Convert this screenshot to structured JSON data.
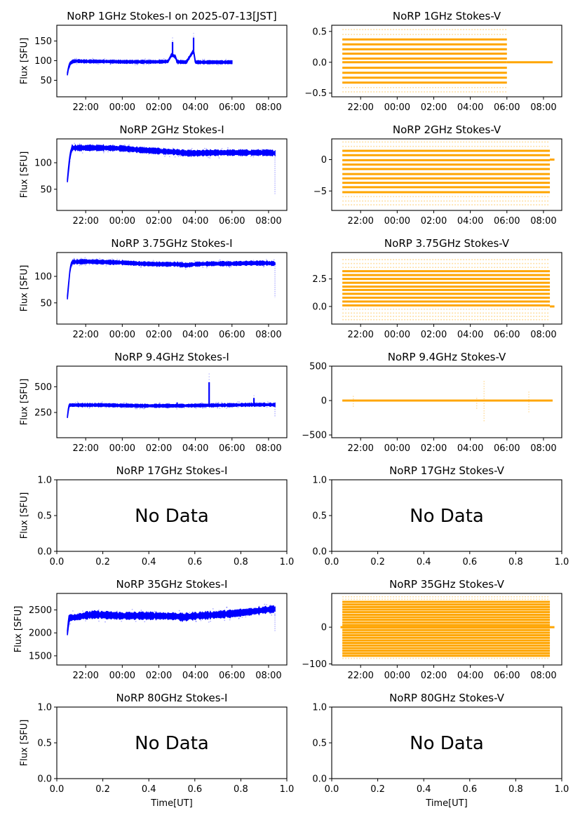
{
  "figure": {
    "xlabel": "Time[UT]",
    "ylabel": "Flux [SFU]",
    "no_data_text": "No Data"
  },
  "chart_data": [
    {
      "id": "1ghz-i",
      "type": "scatter",
      "title": "NoRP 1GHz Stokes-I on 2025-07-13[JST]",
      "column": 0,
      "row": 0,
      "has_data": true,
      "color": "#0000ff",
      "style": "band",
      "xlabel": "",
      "ylabel": "Flux [SFU]",
      "xlim_hours": [
        20.42,
        33.0
      ],
      "ylim": [
        8,
        190
      ],
      "xticks": [
        "22:00",
        "00:00",
        "02:00",
        "04:00",
        "06:00",
        "08:00"
      ],
      "xtick_hours": [
        22,
        24,
        26,
        28,
        30,
        32
      ],
      "yticks": [
        50,
        100,
        150
      ],
      "ytick_labels": [
        "50",
        "100",
        "150"
      ],
      "series": [
        {
          "name": "Stokes-I",
          "x_hours": [
            21.0,
            21.05,
            21.15,
            21.3,
            21.5,
            22.0,
            23.0,
            24.0,
            25.0,
            26.0,
            26.5,
            26.7,
            26.9,
            27.0,
            27.5,
            27.9,
            28.0,
            29.0,
            30.0
          ],
          "values": [
            66,
            80,
            93,
            98,
            99,
            98,
            98,
            97,
            97,
            97,
            98,
            115,
            110,
            97,
            96,
            125,
            96,
            96,
            96
          ],
          "spread": 3
        }
      ],
      "spikes": [
        {
          "x_hours": 26.75,
          "max": 162
        },
        {
          "x_hours": 27.9,
          "max": 173
        }
      ]
    },
    {
      "id": "1ghz-v",
      "type": "scatter",
      "title": "NoRP 1GHz Stokes-V",
      "column": 1,
      "row": 0,
      "has_data": true,
      "color": "#ffa500",
      "style": "levels",
      "xlabel": "",
      "ylabel": "",
      "xlim_hours": [
        20.42,
        33.0
      ],
      "ylim": [
        -0.56,
        0.6
      ],
      "xticks": [
        "22:00",
        "00:00",
        "02:00",
        "04:00",
        "06:00",
        "08:00"
      ],
      "xtick_hours": [
        22,
        24,
        26,
        28,
        30,
        32
      ],
      "yticks": [
        -0.5,
        0.0,
        0.5
      ],
      "ytick_labels": [
        "−0.5",
        "0.0",
        "0.5"
      ],
      "series": [
        {
          "name": "Stokes-V",
          "x_range_hours": [
            21.0,
            30.0
          ],
          "levels": [
            -0.48,
            -0.41,
            -0.33,
            -0.25,
            -0.17,
            -0.09,
            0.0,
            0.06,
            0.14,
            0.21,
            0.29,
            0.37,
            0.45,
            0.53
          ],
          "faint_levels": [
            -0.48,
            -0.41,
            0.45,
            0.53
          ],
          "tail": {
            "x_range_hours": [
              30.0,
              32.5
            ],
            "value": 0.0
          }
        }
      ]
    },
    {
      "id": "2ghz-i",
      "type": "scatter",
      "title": "NoRP 2GHz Stokes-I",
      "column": 0,
      "row": 1,
      "has_data": true,
      "color": "#0000ff",
      "style": "band",
      "xlabel": "",
      "ylabel": "Flux [SFU]",
      "xlim_hours": [
        20.42,
        33.0
      ],
      "ylim": [
        10,
        145
      ],
      "xticks": [
        "22:00",
        "00:00",
        "02:00",
        "04:00",
        "06:00",
        "08:00"
      ],
      "xtick_hours": [
        22,
        24,
        26,
        28,
        30,
        32
      ],
      "yticks": [
        50,
        100
      ],
      "ytick_labels": [
        "50",
        "100"
      ],
      "series": [
        {
          "name": "Stokes-I",
          "x_hours": [
            21.0,
            21.05,
            21.15,
            21.25,
            22.0,
            23.0,
            24.0,
            25.0,
            26.0,
            27.0,
            27.5,
            28.0,
            29.0,
            30.0,
            31.0,
            32.0,
            32.35
          ],
          "values": [
            66,
            85,
            115,
            128,
            128,
            128,
            127,
            124,
            122,
            120,
            118,
            118,
            119,
            119,
            119,
            119,
            118
          ],
          "spread": 4
        }
      ],
      "drop": {
        "x_hours": 32.35,
        "min": 41
      }
    },
    {
      "id": "2ghz-v",
      "type": "scatter",
      "title": "NoRP 2GHz Stokes-V",
      "column": 1,
      "row": 1,
      "has_data": true,
      "color": "#ffa500",
      "style": "levels",
      "xlabel": "",
      "ylabel": "",
      "xlim_hours": [
        20.42,
        33.0
      ],
      "ylim": [
        -8.1,
        3.3
      ],
      "xticks": [
        "22:00",
        "00:00",
        "02:00",
        "04:00",
        "06:00",
        "08:00"
      ],
      "xtick_hours": [
        22,
        24,
        26,
        28,
        30,
        32
      ],
      "yticks": [
        -5,
        0
      ],
      "ytick_labels": [
        "−5",
        "0"
      ],
      "series": [
        {
          "name": "Stokes-V",
          "x_range_hours": [
            21.0,
            32.35
          ],
          "levels": [
            -7.2,
            -6.6,
            -5.9,
            -5.2,
            -4.4,
            -3.7,
            -3.0,
            -2.3,
            -1.5,
            -0.8,
            -0.1,
            0.7,
            1.4,
            2.1,
            2.8
          ],
          "faint_levels": [
            -7.2,
            -6.6,
            -5.9,
            2.1,
            2.8
          ],
          "tail": {
            "x_range_hours": [
              32.35,
              32.6
            ],
            "value": 0.0
          }
        }
      ]
    },
    {
      "id": "3.75ghz-i",
      "type": "scatter",
      "title": "NoRP 3.75GHz Stokes-I",
      "column": 0,
      "row": 2,
      "has_data": true,
      "color": "#0000ff",
      "style": "band",
      "xlabel": "",
      "ylabel": "Flux [SFU]",
      "xlim_hours": [
        20.42,
        33.0
      ],
      "ylim": [
        10,
        145
      ],
      "xticks": [
        "22:00",
        "00:00",
        "02:00",
        "04:00",
        "06:00",
        "08:00"
      ],
      "xtick_hours": [
        22,
        24,
        26,
        28,
        30,
        32
      ],
      "yticks": [
        50,
        100
      ],
      "ytick_labels": [
        "50",
        "100"
      ],
      "series": [
        {
          "name": "Stokes-I",
          "x_hours": [
            21.0,
            21.05,
            21.15,
            21.25,
            22.0,
            23.0,
            24.0,
            25.0,
            26.0,
            27.0,
            27.5,
            28.0,
            29.0,
            30.0,
            31.0,
            32.0,
            32.35
          ],
          "values": [
            60,
            80,
            115,
            127,
            128,
            127,
            126,
            124,
            123,
            123,
            121,
            123,
            124,
            124,
            125,
            125,
            124
          ],
          "spread": 3
        }
      ],
      "drop": {
        "x_hours": 32.35,
        "min": 60
      }
    },
    {
      "id": "3.75ghz-v",
      "type": "scatter",
      "title": "NoRP 3.75GHz Stokes-V",
      "column": 1,
      "row": 2,
      "has_data": true,
      "color": "#ffa500",
      "style": "levels",
      "xlabel": "",
      "ylabel": "",
      "xlim_hours": [
        20.42,
        33.0
      ],
      "ylim": [
        -1.6,
        4.9
      ],
      "xticks": [
        "22:00",
        "00:00",
        "02:00",
        "04:00",
        "06:00",
        "08:00"
      ],
      "xtick_hours": [
        22,
        24,
        26,
        28,
        30,
        32
      ],
      "yticks": [
        0.0,
        2.5
      ],
      "ytick_labels": [
        "0.0",
        "2.5"
      ],
      "series": [
        {
          "name": "Stokes-V",
          "x_range_hours": [
            21.0,
            32.35
          ],
          "levels": [
            -1.2,
            -0.9,
            -0.6,
            -0.25,
            0.1,
            0.45,
            0.8,
            1.15,
            1.5,
            1.8,
            2.15,
            2.5,
            2.85,
            3.2,
            3.55,
            3.9,
            4.25
          ],
          "faint_levels": [
            -1.2,
            -0.9,
            -0.6,
            -0.25,
            3.55,
            3.9,
            4.25
          ],
          "tail": {
            "x_range_hours": [
              32.35,
              32.6
            ],
            "value": 0.0
          }
        }
      ]
    },
    {
      "id": "9.4ghz-i",
      "type": "scatter",
      "title": "NoRP 9.4GHz Stokes-I",
      "column": 0,
      "row": 3,
      "has_data": true,
      "color": "#0000ff",
      "style": "band",
      "xlabel": "",
      "ylabel": "Flux [SFU]",
      "xlim_hours": [
        20.42,
        33.0
      ],
      "ylim": [
        5,
        700
      ],
      "xticks": [
        "22:00",
        "00:00",
        "02:00",
        "04:00",
        "06:00",
        "08:00"
      ],
      "xtick_hours": [
        22,
        24,
        26,
        28,
        30,
        32
      ],
      "yticks": [
        250,
        500
      ],
      "ytick_labels": [
        "250",
        "500"
      ],
      "series": [
        {
          "name": "Stokes-I",
          "x_hours": [
            21.0,
            21.05,
            21.1,
            22.0,
            23.0,
            24.0,
            25.0,
            26.0,
            27.0,
            28.0,
            29.0,
            30.0,
            31.0,
            32.0,
            32.35
          ],
          "values": [
            205,
            280,
            322,
            322,
            322,
            318,
            315,
            315,
            315,
            318,
            320,
            322,
            325,
            326,
            325
          ],
          "spread": 12
        }
      ],
      "spikes": [
        {
          "x_hours": 28.75,
          "max": 640
        },
        {
          "x_hours": 31.2,
          "max": 420
        },
        {
          "x_hours": 27.0,
          "max": 360
        }
      ],
      "drop": {
        "x_hours": 32.35,
        "min": 205
      }
    },
    {
      "id": "9.4ghz-v",
      "type": "scatter",
      "title": "NoRP 9.4GHz Stokes-V",
      "column": 1,
      "row": 3,
      "has_data": true,
      "color": "#ffa500",
      "style": "flat",
      "xlabel": "",
      "ylabel": "",
      "xlim_hours": [
        20.42,
        33.0
      ],
      "ylim": [
        -540,
        500
      ],
      "xticks": [
        "22:00",
        "00:00",
        "02:00",
        "04:00",
        "06:00",
        "08:00"
      ],
      "xtick_hours": [
        22,
        24,
        26,
        28,
        30,
        32
      ],
      "yticks": [
        -500,
        0,
        500
      ],
      "ytick_labels": [
        "−500",
        "0",
        "500"
      ],
      "series": [
        {
          "name": "Stokes-V",
          "x_range_hours": [
            21.0,
            32.5
          ],
          "value": 0,
          "spread": 15
        }
      ],
      "spikes": [
        {
          "x_hours": 21.6,
          "min": -90,
          "max": 80
        },
        {
          "x_hours": 28.75,
          "min": -300,
          "max": 300
        },
        {
          "x_hours": 28.35,
          "min": -120,
          "max": 60
        },
        {
          "x_hours": 31.2,
          "min": -170,
          "max": 140
        }
      ]
    },
    {
      "id": "17ghz-i",
      "type": "empty",
      "title": "NoRP 17GHz Stokes-I",
      "column": 0,
      "row": 4,
      "has_data": false,
      "xlabel": "",
      "ylabel": "Flux [SFU]",
      "xlim": [
        0.0,
        1.0
      ],
      "ylim": [
        0.0,
        1.0
      ],
      "xticks": [
        "0.0",
        "0.2",
        "0.4",
        "0.6",
        "0.8",
        "1.0"
      ],
      "xtick_values": [
        0.0,
        0.2,
        0.4,
        0.6,
        0.8,
        1.0
      ],
      "yticks": [
        0.0,
        0.5,
        1.0
      ],
      "ytick_labels": [
        "0.0",
        "0.5",
        "1.0"
      ],
      "annotation": "No Data"
    },
    {
      "id": "17ghz-v",
      "type": "empty",
      "title": "NoRP 17GHz Stokes-V",
      "column": 1,
      "row": 4,
      "has_data": false,
      "xlabel": "",
      "ylabel": "",
      "xlim": [
        0.0,
        1.0
      ],
      "ylim": [
        0.0,
        1.0
      ],
      "xticks": [
        "0.0",
        "0.2",
        "0.4",
        "0.6",
        "0.8",
        "1.0"
      ],
      "xtick_values": [
        0.0,
        0.2,
        0.4,
        0.6,
        0.8,
        1.0
      ],
      "yticks": [
        0.0,
        0.5,
        1.0
      ],
      "ytick_labels": [
        "0.0",
        "0.5",
        "1.0"
      ],
      "annotation": "No Data"
    },
    {
      "id": "35ghz-i",
      "type": "scatter",
      "title": "NoRP 35GHz Stokes-I",
      "column": 0,
      "row": 5,
      "has_data": true,
      "color": "#0000ff",
      "style": "band",
      "xlabel": "",
      "ylabel": "Flux [SFU]",
      "xlim_hours": [
        20.42,
        33.0
      ],
      "ylim": [
        1300,
        2860
      ],
      "xticks": [
        "22:00",
        "00:00",
        "02:00",
        "04:00",
        "06:00",
        "08:00"
      ],
      "xtick_hours": [
        22,
        24,
        26,
        28,
        30,
        32
      ],
      "yticks": [
        1500,
        2000,
        2500
      ],
      "ytick_labels": [
        "1500",
        "2000",
        "2500"
      ],
      "series": [
        {
          "name": "Stokes-I",
          "x_hours": [
            21.0,
            21.05,
            21.1,
            21.5,
            22.0,
            22.5,
            23.0,
            24.0,
            25.0,
            26.0,
            27.0,
            27.3,
            28.0,
            29.0,
            30.0,
            31.0,
            32.0,
            32.35
          ],
          "values": [
            2000,
            2200,
            2330,
            2340,
            2380,
            2400,
            2390,
            2370,
            2375,
            2370,
            2360,
            2340,
            2370,
            2390,
            2420,
            2460,
            2510,
            2520
          ],
          "spread": 60
        }
      ],
      "drop": {
        "x_hours": 32.35,
        "min": 2040
      }
    },
    {
      "id": "35ghz-v",
      "type": "scatter",
      "title": "NoRP 35GHz Stokes-V",
      "column": 1,
      "row": 5,
      "has_data": true,
      "color": "#ffa500",
      "style": "levels",
      "xlabel": "",
      "ylabel": "",
      "xlim_hours": [
        20.42,
        33.0
      ],
      "ylim": [
        -103,
        92
      ],
      "xticks": [
        "22:00",
        "00:00",
        "02:00",
        "04:00",
        "06:00",
        "08:00"
      ],
      "xtick_hours": [
        22,
        24,
        26,
        28,
        30,
        32
      ],
      "yticks": [
        -100,
        0
      ],
      "ytick_labels": [
        "−100",
        "0"
      ],
      "series": [
        {
          "name": "Stokes-V",
          "x_range_hours": [
            21.0,
            32.35
          ],
          "levels": [
            -85,
            -78,
            -71,
            -64,
            -57,
            -50,
            -43,
            -36,
            -29,
            -22,
            -15,
            -8,
            -1,
            6,
            13,
            20,
            27,
            34,
            41,
            48,
            55,
            62,
            69,
            76,
            83
          ],
          "faint_levels": [
            -85,
            76,
            83
          ],
          "tail": {
            "x_range_hours": [
              20.9,
              32.6
            ],
            "value": 0
          }
        }
      ]
    },
    {
      "id": "80ghz-i",
      "type": "empty",
      "title": "NoRP 80GHz Stokes-I",
      "column": 0,
      "row": 6,
      "has_data": false,
      "xlabel": "Time[UT]",
      "ylabel": "Flux [SFU]",
      "xlim": [
        0.0,
        1.0
      ],
      "ylim": [
        0.0,
        1.0
      ],
      "xticks": [
        "0.0",
        "0.2",
        "0.4",
        "0.6",
        "0.8",
        "1.0"
      ],
      "xtick_values": [
        0.0,
        0.2,
        0.4,
        0.6,
        0.8,
        1.0
      ],
      "yticks": [
        0.0,
        0.5,
        1.0
      ],
      "ytick_labels": [
        "0.0",
        "0.5",
        "1.0"
      ],
      "annotation": "No Data"
    },
    {
      "id": "80ghz-v",
      "type": "empty",
      "title": "NoRP 80GHz Stokes-V",
      "column": 1,
      "row": 6,
      "has_data": false,
      "xlabel": "Time[UT]",
      "ylabel": "",
      "xlim": [
        0.0,
        1.0
      ],
      "ylim": [
        0.0,
        1.0
      ],
      "xticks": [
        "0.0",
        "0.2",
        "0.4",
        "0.6",
        "0.8",
        "1.0"
      ],
      "xtick_values": [
        0.0,
        0.2,
        0.4,
        0.6,
        0.8,
        1.0
      ],
      "yticks": [
        0.0,
        0.5,
        1.0
      ],
      "ytick_labels": [
        "0.0",
        "0.5",
        "1.0"
      ],
      "annotation": "No Data"
    }
  ]
}
